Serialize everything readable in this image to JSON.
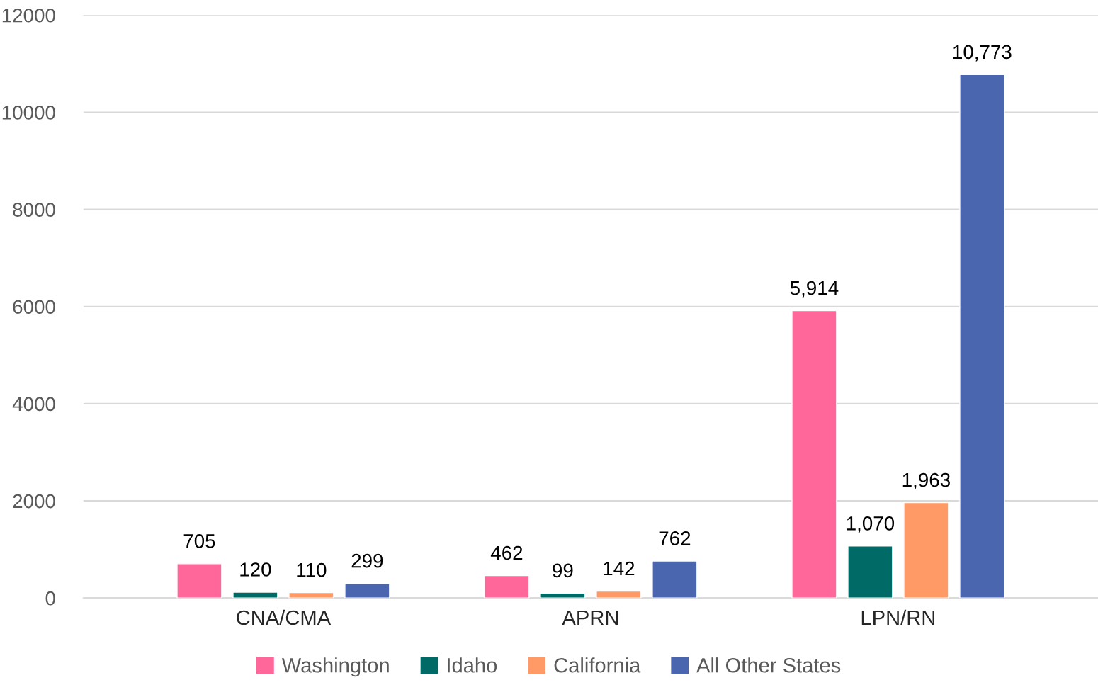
{
  "chart_data": {
    "type": "bar",
    "categories": [
      "CNA/CMA",
      "APRN",
      "LPN/RN"
    ],
    "series": [
      {
        "name": "Washington",
        "color": "#ff6699",
        "values": [
          705,
          462,
          5914
        ],
        "value_labels": [
          "705",
          "462",
          "5,914"
        ]
      },
      {
        "name": "Idaho",
        "color": "#006b66",
        "values": [
          120,
          99,
          1070
        ],
        "value_labels": [
          "120",
          "99",
          "1,070"
        ]
      },
      {
        "name": "California",
        "color": "#ff9966",
        "values": [
          110,
          142,
          1963
        ],
        "value_labels": [
          "110",
          "142",
          "1,963"
        ]
      },
      {
        "name": "All Other States",
        "color": "#4a66ae",
        "values": [
          299,
          762,
          10773
        ],
        "value_labels": [
          "299",
          "762",
          "10,773"
        ]
      }
    ],
    "ylim": [
      0,
      12000
    ],
    "yticks": [
      0,
      2000,
      4000,
      6000,
      8000,
      10000,
      12000
    ],
    "grid": "y",
    "legend": "bottom"
  }
}
